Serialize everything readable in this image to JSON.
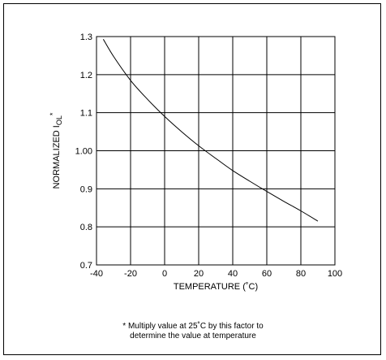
{
  "chart_data": {
    "type": "line",
    "xlabel_prefix": "TEMPERATURE (",
    "xlabel_unit": "˚C",
    "xlabel_suffix": ")",
    "ylabel_main": "NORMALIZED I",
    "ylabel_sub": "OL",
    "ylabel_sup": "*",
    "xlim": [
      -40,
      100
    ],
    "ylim": [
      0.7,
      1.3
    ],
    "x_ticks": [
      -40,
      -20,
      0,
      20,
      40,
      60,
      80,
      100
    ],
    "x_tick_labels": [
      "-40",
      "-20",
      "0",
      "20",
      "40",
      "60",
      "80",
      "100"
    ],
    "y_ticks": [
      0.7,
      0.8,
      0.9,
      1.0,
      1.1,
      1.2,
      1.3
    ],
    "y_tick_labels": [
      "0.7",
      "0.8",
      "0.9",
      "1.00",
      "1.1",
      "1.2",
      "1.3"
    ],
    "grid": true,
    "series": [
      {
        "x": [
          -36,
          -30,
          -20,
          -10,
          0,
          10,
          20,
          30,
          40,
          50,
          60,
          70,
          80,
          90
        ],
        "y": [
          1.293,
          1.248,
          1.185,
          1.135,
          1.09,
          1.05,
          1.013,
          0.98,
          0.948,
          0.92,
          0.893,
          0.867,
          0.842,
          0.815
        ]
      }
    ],
    "footnote_line1": "*  Multiply value at 25˚C by this factor to",
    "footnote_line2": "determine the value at temperature"
  }
}
